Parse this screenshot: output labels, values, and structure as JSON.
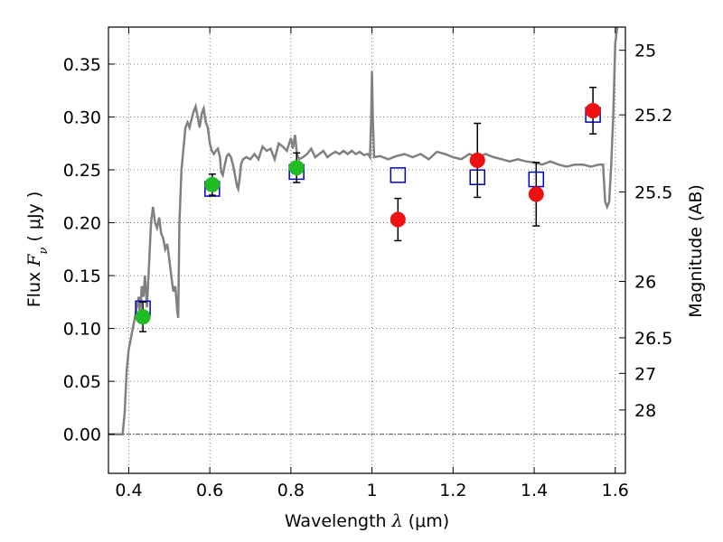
{
  "chart_data": {
    "type": "scatter",
    "xlabel_prefix": "Wavelength ",
    "xlabel_math": "λ",
    "xlabel_suffix": " (μm)",
    "ylabel_prefix": "Flux ",
    "ylabel_math": "F",
    "ylabel_sub": "ν",
    "ylabel_suffix": " ( μJy )",
    "y2label": "Magnitude (AB)",
    "xlim": [
      0.35,
      1.625
    ],
    "ylim": [
      -0.037,
      0.385
    ],
    "grid": true,
    "x_ticks": [
      {
        "value": 0.4,
        "label": "0.4"
      },
      {
        "value": 0.6,
        "label": "0.6"
      },
      {
        "value": 0.8,
        "label": "0.8"
      },
      {
        "value": 1.0,
        "label": "1"
      },
      {
        "value": 1.2,
        "label": "1.2"
      },
      {
        "value": 1.4,
        "label": "1.4"
      },
      {
        "value": 1.6,
        "label": "1.6"
      }
    ],
    "y_ticks": [
      {
        "value": 0.0,
        "label": "0.00"
      },
      {
        "value": 0.05,
        "label": "0.05"
      },
      {
        "value": 0.1,
        "label": "0.10"
      },
      {
        "value": 0.15,
        "label": "0.15"
      },
      {
        "value": 0.2,
        "label": "0.20"
      },
      {
        "value": 0.25,
        "label": "0.25"
      },
      {
        "value": 0.3,
        "label": "0.30"
      },
      {
        "value": 0.35,
        "label": "0.35"
      }
    ],
    "mag_ticks": [
      {
        "value": 25,
        "label": "25"
      },
      {
        "value": 25.2,
        "label": "25.2"
      },
      {
        "value": 25.5,
        "label": "25.5"
      },
      {
        "value": 26,
        "label": "26"
      },
      {
        "value": 26.5,
        "label": "26.5"
      },
      {
        "value": 27,
        "label": "27"
      },
      {
        "value": 28,
        "label": "28"
      }
    ],
    "colors": {
      "model": "#808080",
      "model_points": "#0000cc",
      "green": "#22bb22",
      "red": "#ee1111",
      "errorbar": "#000000",
      "grid": "#555555"
    },
    "model_spectrum": [
      [
        0.35,
        0.0
      ],
      [
        0.385,
        0.0
      ],
      [
        0.39,
        0.02
      ],
      [
        0.395,
        0.06
      ],
      [
        0.4,
        0.08
      ],
      [
        0.405,
        0.09
      ],
      [
        0.41,
        0.1
      ],
      [
        0.415,
        0.11
      ],
      [
        0.42,
        0.12
      ],
      [
        0.425,
        0.13
      ],
      [
        0.428,
        0.11
      ],
      [
        0.432,
        0.14
      ],
      [
        0.436,
        0.13
      ],
      [
        0.44,
        0.15
      ],
      [
        0.445,
        0.12
      ],
      [
        0.45,
        0.16
      ],
      [
        0.455,
        0.2
      ],
      [
        0.46,
        0.215
      ],
      [
        0.465,
        0.2
      ],
      [
        0.47,
        0.195
      ],
      [
        0.475,
        0.205
      ],
      [
        0.48,
        0.19
      ],
      [
        0.485,
        0.185
      ],
      [
        0.49,
        0.175
      ],
      [
        0.495,
        0.18
      ],
      [
        0.5,
        0.165
      ],
      [
        0.505,
        0.15
      ],
      [
        0.51,
        0.135
      ],
      [
        0.515,
        0.14
      ],
      [
        0.52,
        0.115
      ],
      [
        0.522,
        0.11
      ],
      [
        0.525,
        0.2
      ],
      [
        0.53,
        0.25
      ],
      [
        0.535,
        0.27
      ],
      [
        0.54,
        0.29
      ],
      [
        0.545,
        0.295
      ],
      [
        0.55,
        0.29
      ],
      [
        0.555,
        0.298
      ],
      [
        0.56,
        0.305
      ],
      [
        0.565,
        0.31
      ],
      [
        0.57,
        0.3
      ],
      [
        0.575,
        0.29
      ],
      [
        0.58,
        0.303
      ],
      [
        0.585,
        0.308
      ],
      [
        0.59,
        0.295
      ],
      [
        0.595,
        0.29
      ],
      [
        0.6,
        0.275
      ],
      [
        0.605,
        0.268
      ],
      [
        0.61,
        0.265
      ],
      [
        0.615,
        0.268
      ],
      [
        0.62,
        0.27
      ],
      [
        0.625,
        0.262
      ],
      [
        0.628,
        0.248
      ],
      [
        0.632,
        0.245
      ],
      [
        0.637,
        0.255
      ],
      [
        0.642,
        0.263
      ],
      [
        0.647,
        0.265
      ],
      [
        0.652,
        0.262
      ],
      [
        0.657,
        0.255
      ],
      [
        0.662,
        0.245
      ],
      [
        0.667,
        0.235
      ],
      [
        0.67,
        0.232
      ],
      [
        0.673,
        0.24
      ],
      [
        0.677,
        0.255
      ],
      [
        0.682,
        0.26
      ],
      [
        0.69,
        0.262
      ],
      [
        0.7,
        0.26
      ],
      [
        0.71,
        0.265
      ],
      [
        0.72,
        0.26
      ],
      [
        0.73,
        0.272
      ],
      [
        0.74,
        0.268
      ],
      [
        0.75,
        0.27
      ],
      [
        0.76,
        0.26
      ],
      [
        0.77,
        0.275
      ],
      [
        0.78,
        0.272
      ],
      [
        0.79,
        0.268
      ],
      [
        0.8,
        0.28
      ],
      [
        0.805,
        0.27
      ],
      [
        0.81,
        0.283
      ],
      [
        0.815,
        0.265
      ],
      [
        0.82,
        0.26
      ],
      [
        0.83,
        0.262
      ],
      [
        0.84,
        0.265
      ],
      [
        0.85,
        0.27
      ],
      [
        0.86,
        0.262
      ],
      [
        0.87,
        0.265
      ],
      [
        0.88,
        0.268
      ],
      [
        0.89,
        0.262
      ],
      [
        0.9,
        0.265
      ],
      [
        0.91,
        0.267
      ],
      [
        0.92,
        0.265
      ],
      [
        0.93,
        0.268
      ],
      [
        0.94,
        0.265
      ],
      [
        0.95,
        0.268
      ],
      [
        0.96,
        0.265
      ],
      [
        0.97,
        0.267
      ],
      [
        0.98,
        0.264
      ],
      [
        0.99,
        0.265
      ],
      [
        0.995,
        0.262
      ],
      [
        0.998,
        0.3
      ],
      [
        1.0,
        0.343
      ],
      [
        1.002,
        0.3
      ],
      [
        1.005,
        0.262
      ],
      [
        1.02,
        0.263
      ],
      [
        1.04,
        0.26
      ],
      [
        1.06,
        0.263
      ],
      [
        1.08,
        0.265
      ],
      [
        1.1,
        0.262
      ],
      [
        1.12,
        0.265
      ],
      [
        1.14,
        0.26
      ],
      [
        1.16,
        0.267
      ],
      [
        1.18,
        0.265
      ],
      [
        1.2,
        0.262
      ],
      [
        1.22,
        0.26
      ],
      [
        1.24,
        0.265
      ],
      [
        1.26,
        0.262
      ],
      [
        1.28,
        0.265
      ],
      [
        1.3,
        0.262
      ],
      [
        1.32,
        0.26
      ],
      [
        1.34,
        0.258
      ],
      [
        1.36,
        0.26
      ],
      [
        1.38,
        0.258
      ],
      [
        1.4,
        0.257
      ],
      [
        1.42,
        0.255
      ],
      [
        1.44,
        0.258
      ],
      [
        1.46,
        0.255
      ],
      [
        1.48,
        0.253
      ],
      [
        1.5,
        0.255
      ],
      [
        1.52,
        0.255
      ],
      [
        1.54,
        0.253
      ],
      [
        1.56,
        0.255
      ],
      [
        1.57,
        0.255
      ],
      [
        1.575,
        0.22
      ],
      [
        1.58,
        0.215
      ],
      [
        1.585,
        0.22
      ],
      [
        1.59,
        0.255
      ],
      [
        1.595,
        0.3
      ],
      [
        1.6,
        0.37
      ],
      [
        1.605,
        0.385
      ]
    ],
    "model_points": [
      {
        "x": 0.435,
        "y": 0.119
      },
      {
        "x": 0.606,
        "y": 0.232
      },
      {
        "x": 0.814,
        "y": 0.248
      },
      {
        "x": 1.064,
        "y": 0.245
      },
      {
        "x": 1.26,
        "y": 0.243
      },
      {
        "x": 1.405,
        "y": 0.241
      },
      {
        "x": 1.545,
        "y": 0.302
      }
    ],
    "observed_green": [
      {
        "x": 0.435,
        "y": 0.111,
        "err": 0.014
      },
      {
        "x": 0.606,
        "y": 0.236,
        "err": 0.01
      },
      {
        "x": 0.814,
        "y": 0.252,
        "err": 0.014
      }
    ],
    "observed_red": [
      {
        "x": 1.064,
        "y": 0.203,
        "err": 0.02
      },
      {
        "x": 1.26,
        "y": 0.259,
        "err": 0.035
      },
      {
        "x": 1.405,
        "y": 0.227,
        "err": 0.03
      },
      {
        "x": 1.545,
        "y": 0.306,
        "err": 0.022
      }
    ]
  }
}
